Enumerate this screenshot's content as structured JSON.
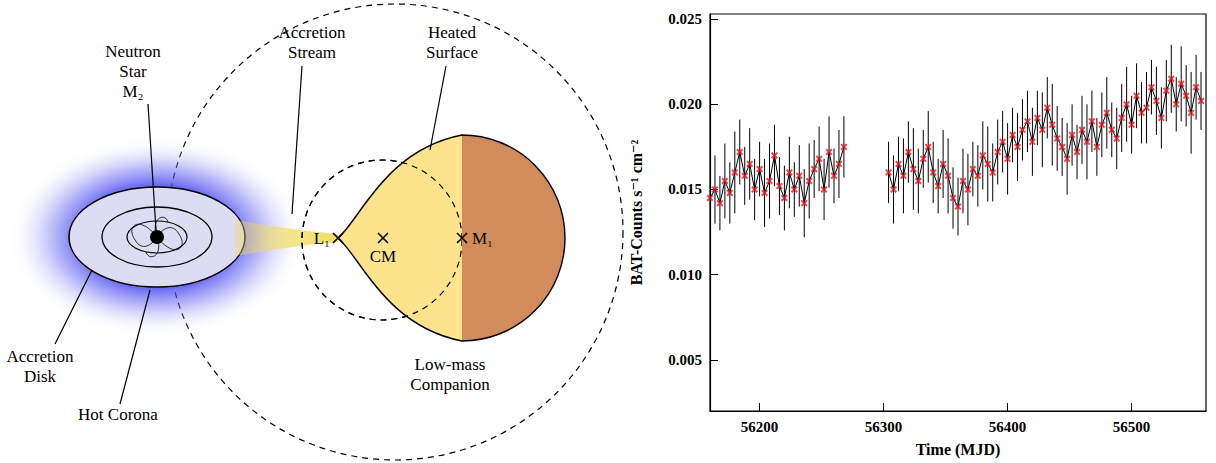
{
  "diagram": {
    "neutron_star": [
      "Neutron",
      "Star",
      "M₂"
    ],
    "accretion_stream": [
      "Accretion",
      "Stream"
    ],
    "heated_surface": [
      "Heated",
      "Surface"
    ],
    "l1": "L₁",
    "cm": "CM",
    "m1": "M₁",
    "companion": [
      "Low-mass",
      "Companion"
    ],
    "accretion_disk": [
      "Accretion",
      "Disk"
    ],
    "hot_corona": "Hot Corona"
  },
  "chart_data": {
    "type": "line",
    "x_label": "Time (MJD)",
    "y_label": "BAT-Counts s⁻¹ cm⁻²",
    "marker": "x",
    "color": "#e8161e",
    "grid": false,
    "xlim": [
      56160,
      56560
    ],
    "xticks": [
      56200,
      56300,
      56400,
      56500
    ],
    "ylim": [
      0.002,
      0.0253
    ],
    "yticks": [
      0.005,
      {
        "value": 0.01,
        "label": "0.010"
      },
      0.015,
      {
        "value": 0.02,
        "label": "0.020"
      },
      0.025
    ],
    "x": [
      56160,
      56164,
      56168,
      56172,
      56176,
      56180,
      56184,
      56188,
      56192,
      56196,
      56200,
      56204,
      56208,
      56212,
      56216,
      56220,
      56224,
      56228,
      56232,
      56236,
      56240,
      56244,
      56248,
      56252,
      56256,
      56260,
      56264,
      56268,
      56286,
      56304,
      56308,
      56312,
      56316,
      56320,
      56324,
      56328,
      56332,
      56336,
      56340,
      56344,
      56348,
      56352,
      56356,
      56360,
      56364,
      56368,
      56372,
      56376,
      56380,
      56384,
      56388,
      56392,
      56396,
      56400,
      56404,
      56408,
      56412,
      56416,
      56420,
      56424,
      56428,
      56432,
      56436,
      56440,
      56444,
      56448,
      56452,
      56456,
      56460,
      56464,
      56468,
      56472,
      56476,
      56480,
      56484,
      56488,
      56492,
      56496,
      56500,
      56504,
      56508,
      56512,
      56516,
      56520,
      56524,
      56528,
      56532,
      56536,
      56540,
      56544,
      56548,
      56552,
      56556
    ],
    "values": [
      0.0145,
      0.015,
      0.0142,
      0.0155,
      0.0148,
      0.016,
      0.0172,
      0.0158,
      0.0165,
      0.015,
      0.0162,
      0.0148,
      0.0155,
      0.017,
      0.0152,
      0.0145,
      0.016,
      0.015,
      0.0158,
      0.0142,
      0.0155,
      0.0162,
      0.0168,
      0.015,
      0.0172,
      0.0158,
      0.0165,
      0.0175,
      null,
      0.016,
      0.015,
      0.0165,
      0.0158,
      0.0172,
      0.0162,
      0.0155,
      0.0168,
      0.0175,
      0.016,
      0.0152,
      0.0165,
      0.0158,
      0.0145,
      0.014,
      0.0155,
      0.015,
      0.0162,
      0.0158,
      0.017,
      0.0165,
      0.016,
      0.0172,
      0.0178,
      0.0168,
      0.0182,
      0.0175,
      0.0185,
      0.019,
      0.0178,
      0.0192,
      0.0185,
      0.0198,
      0.0188,
      0.018,
      0.0175,
      0.0168,
      0.0182,
      0.0172,
      0.0185,
      0.0178,
      0.019,
      0.0175,
      0.0188,
      0.0195,
      0.0185,
      0.018,
      0.0192,
      0.02,
      0.0188,
      0.0205,
      0.0195,
      0.0198,
      0.021,
      0.0202,
      0.0192,
      0.0208,
      0.0215,
      0.02,
      0.0212,
      0.0205,
      0.0195,
      0.021,
      0.0202
    ],
    "errors": [
      0.0018,
      0.002,
      0.0016,
      0.0022,
      0.0018,
      0.0024,
      0.0019,
      0.0017,
      0.0021,
      0.0018,
      0.0016,
      0.002,
      0.0022,
      0.0018,
      0.0017,
      0.0019,
      0.0021,
      0.0016,
      0.0018,
      0.002,
      0.0022,
      0.0017,
      0.0019,
      0.0018,
      0.0021,
      0.0016,
      0.002,
      0.0018,
      null,
      0.0018,
      0.002,
      0.0016,
      0.0022,
      0.0018,
      0.0024,
      0.0019,
      0.0017,
      0.0021,
      0.0018,
      0.0016,
      0.002,
      0.0022,
      0.0018,
      0.0017,
      0.0019,
      0.0021,
      0.0016,
      0.0018,
      0.002,
      0.0022,
      0.0017,
      0.0019,
      0.0018,
      0.0021,
      0.0016,
      0.002,
      0.0018,
      0.0018,
      0.002,
      0.0016,
      0.0022,
      0.0018,
      0.0024,
      0.0019,
      0.0017,
      0.0021,
      0.0018,
      0.0016,
      0.002,
      0.0022,
      0.0018,
      0.0017,
      0.0019,
      0.0021,
      0.0016,
      0.0018,
      0.002,
      0.0022,
      0.0017,
      0.0019,
      0.0018,
      0.0021,
      0.0016,
      0.002,
      0.0018,
      0.0018,
      0.002,
      0.0016,
      0.0022,
      0.0018,
      0.0024,
      0.0019,
      0.0017
    ]
  }
}
